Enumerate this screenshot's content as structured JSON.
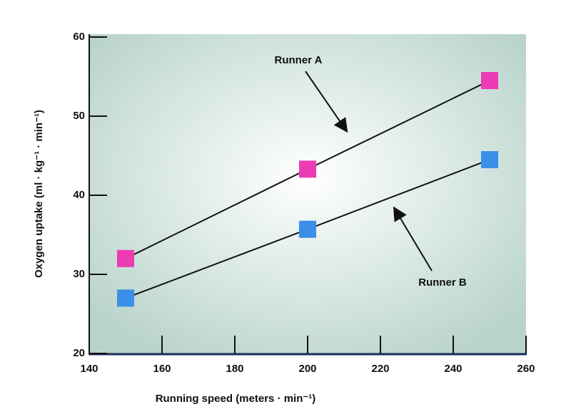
{
  "chart_data": {
    "type": "line",
    "x_label": "Running speed (meters · min⁻¹)",
    "y_label": "Oxygen uptake (ml · kg⁻¹ · min⁻¹)",
    "x": [
      150,
      200,
      250
    ],
    "series": [
      {
        "name": "Runner A",
        "color": "#ec3cb4",
        "values": [
          32,
          43.3,
          54.5
        ]
      },
      {
        "name": "Runner B",
        "color": "#3b8fe8",
        "values": [
          27,
          35.7,
          44.5
        ]
      }
    ],
    "xlim": [
      140,
      260
    ],
    "xticks": [
      140,
      160,
      180,
      200,
      220,
      240,
      260
    ],
    "ylim": [
      20,
      60
    ],
    "yticks": [
      20,
      30,
      40,
      50,
      60
    ]
  }
}
